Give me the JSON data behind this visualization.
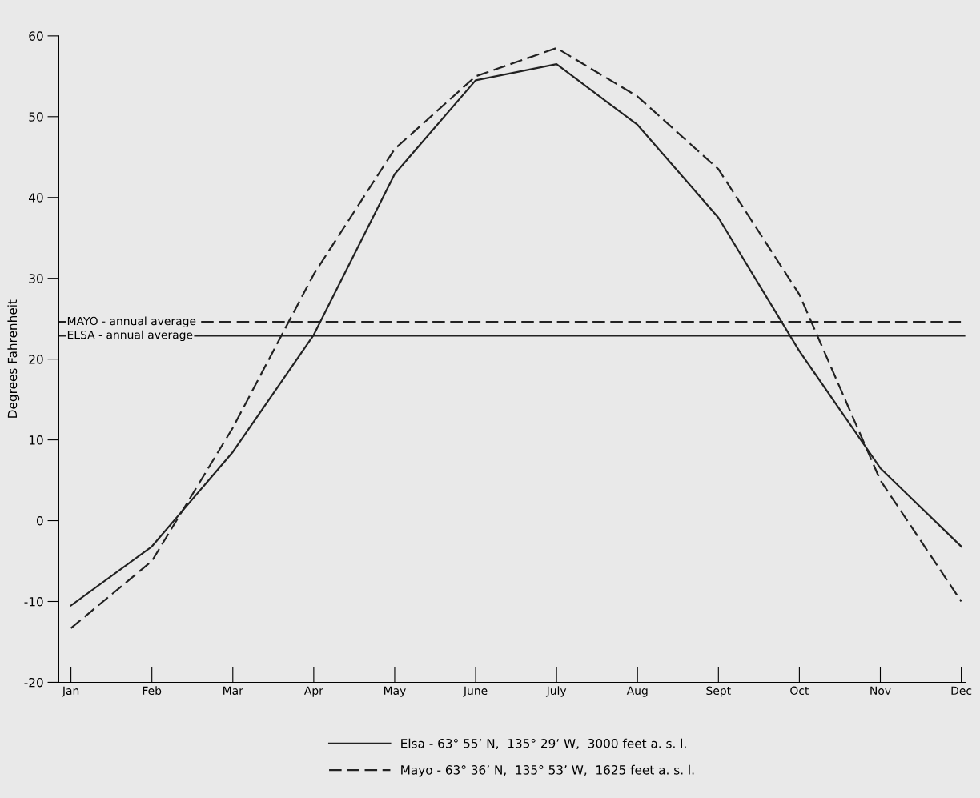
{
  "chart_data": {
    "type": "line",
    "ylabel": "Degrees Fahrenheit",
    "categories": [
      "Jan",
      "Feb",
      "Mar",
      "Apr",
      "May",
      "June",
      "July",
      "Aug",
      "Sept",
      "Oct",
      "Nov",
      "Dec"
    ],
    "series": [
      {
        "name": "Elsa - 63° 55’ N,  135° 29’ W,  3000 feet a. s. l.",
        "color": "#222222",
        "line_style": "solid",
        "values": [
          -10.5,
          -3.2,
          8.5,
          23,
          42.9,
          54.5,
          56.5,
          49,
          37.5,
          21,
          6.5,
          -3.2
        ]
      },
      {
        "name": "Mayo - 63° 36’ N,  135° 53’ W,  1625 feet a. s. l.",
        "color": "#222222",
        "line_style": "dashed",
        "values": [
          -13.3,
          -5,
          11.5,
          30.5,
          46,
          55,
          58.5,
          52.5,
          43.5,
          28,
          5,
          -10
        ]
      }
    ],
    "ref_lines": [
      {
        "axis": "y",
        "value": 24.6,
        "label": "MAYO - annual average",
        "color": "#222222",
        "line_style": "dashed"
      },
      {
        "axis": "y",
        "value": 22.9,
        "label": "ELSA - annual average",
        "color": "#222222",
        "line_style": "solid"
      }
    ],
    "ylim": [
      -20,
      60
    ],
    "yticks": [
      -20,
      -10,
      0,
      10,
      20,
      30,
      40,
      50,
      60
    ],
    "grid": false,
    "legend": "bottom",
    "marker": "none"
  }
}
